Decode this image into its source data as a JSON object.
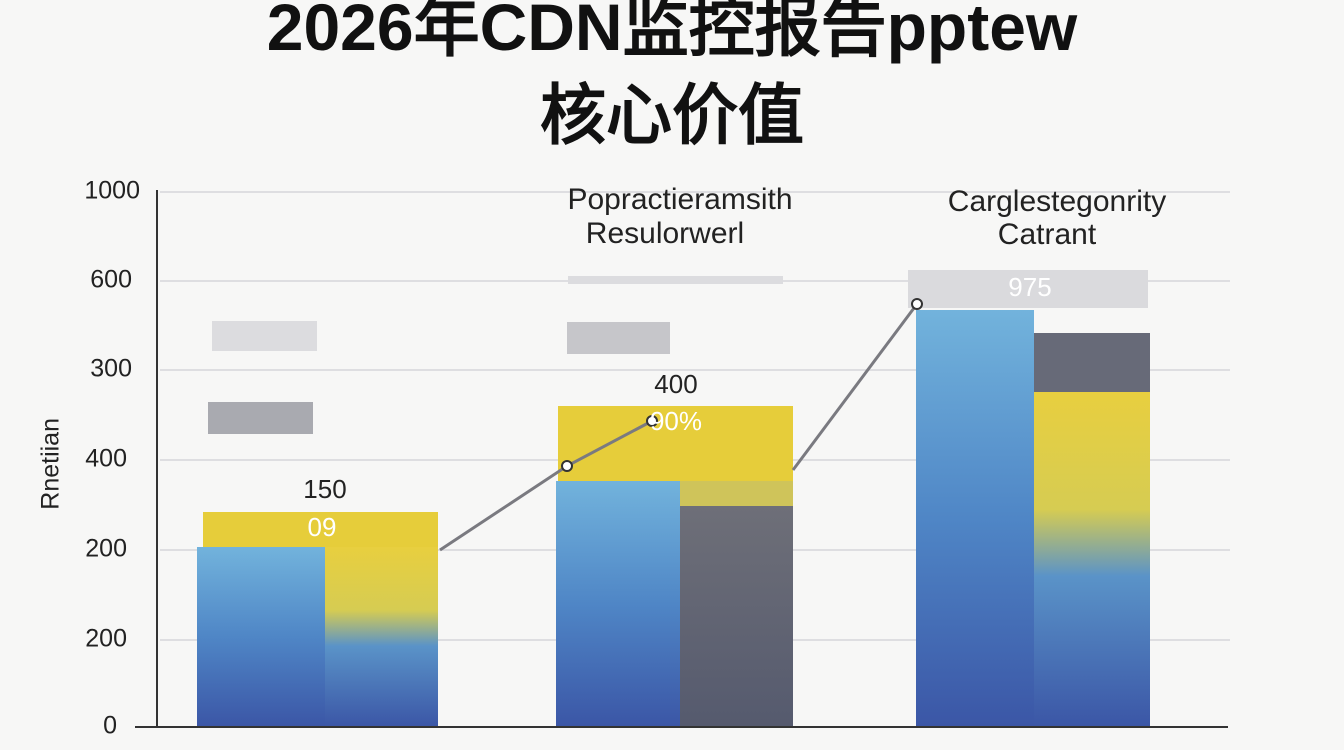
{
  "title": {
    "line1": "2026年CDN监控报告pptew",
    "line2": "核心价值"
  },
  "axis": {
    "label": "Rnetiian",
    "ticks": [
      "1000",
      "600",
      "300",
      "400",
      "200",
      "200",
      "0"
    ]
  },
  "groups": [
    {
      "annotations": [
        "150",
        "09"
      ]
    },
    {
      "header": [
        "Popractieramsith",
        "Resulorwerl"
      ],
      "annotations": [
        "400",
        "90%"
      ]
    },
    {
      "header": [
        "Carglestegonrity",
        "Catrant"
      ],
      "annotations": [
        "975"
      ]
    }
  ]
}
